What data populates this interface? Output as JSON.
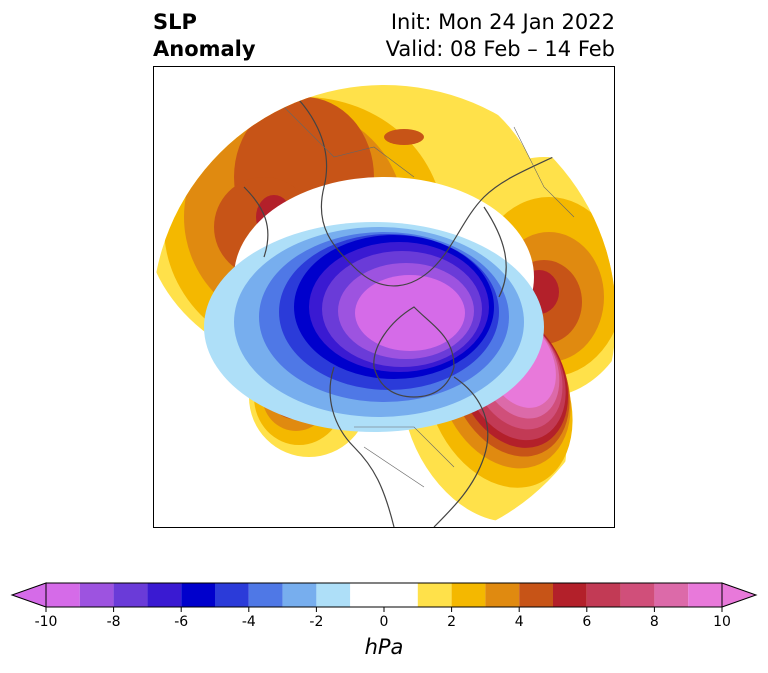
{
  "header": {
    "variable": "SLP",
    "kind": "Anomaly",
    "init": "Init: Mon 24 Jan 2022",
    "valid": "Valid: 08 Feb – 14 Feb"
  },
  "colorbar": {
    "unit": "hPa",
    "ticks": [
      "-10",
      "-8",
      "-6",
      "-4",
      "-2",
      "0",
      "2",
      "4",
      "6",
      "8",
      "10"
    ],
    "bins": [
      {
        "range": [
          -10,
          -9
        ],
        "color": "#d56be8"
      },
      {
        "range": [
          -9,
          -8
        ],
        "color": "#9d53e0"
      },
      {
        "range": [
          -8,
          -7
        ],
        "color": "#6a3bd8"
      },
      {
        "range": [
          -7,
          -6
        ],
        "color": "#3a1ad2"
      },
      {
        "range": [
          -6,
          -5
        ],
        "color": "#0000cc"
      },
      {
        "range": [
          -5,
          -4
        ],
        "color": "#2b3bd9"
      },
      {
        "range": [
          -4,
          -3
        ],
        "color": "#4f78e6"
      },
      {
        "range": [
          -3,
          -2
        ],
        "color": "#77aeee"
      },
      {
        "range": [
          -2,
          -1
        ],
        "color": "#aedff8"
      },
      {
        "range": [
          -1,
          1
        ],
        "color": "#ffffff"
      },
      {
        "range": [
          1,
          2
        ],
        "color": "#ffe14a"
      },
      {
        "range": [
          2,
          3
        ],
        "color": "#f4b800"
      },
      {
        "range": [
          3,
          4
        ],
        "color": "#e08a10"
      },
      {
        "range": [
          4,
          5
        ],
        "color": "#c75417"
      },
      {
        "range": [
          5,
          6
        ],
        "color": "#b3202a"
      },
      {
        "range": [
          6,
          7
        ],
        "color": "#c23a55"
      },
      {
        "range": [
          7,
          8
        ],
        "color": "#d04f7a"
      },
      {
        "range": [
          8,
          9
        ],
        "color": "#dc6aa9"
      },
      {
        "range": [
          9,
          10
        ],
        "color": "#e879da"
      }
    ],
    "under_color": "#d56be8",
    "over_color": "#e879da"
  },
  "map": {
    "projection": "polar-stereographic",
    "region": "North America / Arctic",
    "centers": [
      {
        "name": "arctic-low",
        "sign": "negative",
        "peak": -10
      },
      {
        "name": "north-atlantic-high",
        "sign": "positive",
        "peak": 10
      },
      {
        "name": "eurasia-high",
        "sign": "positive",
        "peak": 5
      },
      {
        "name": "north-pacific-high",
        "sign": "positive",
        "peak": 5
      }
    ]
  }
}
